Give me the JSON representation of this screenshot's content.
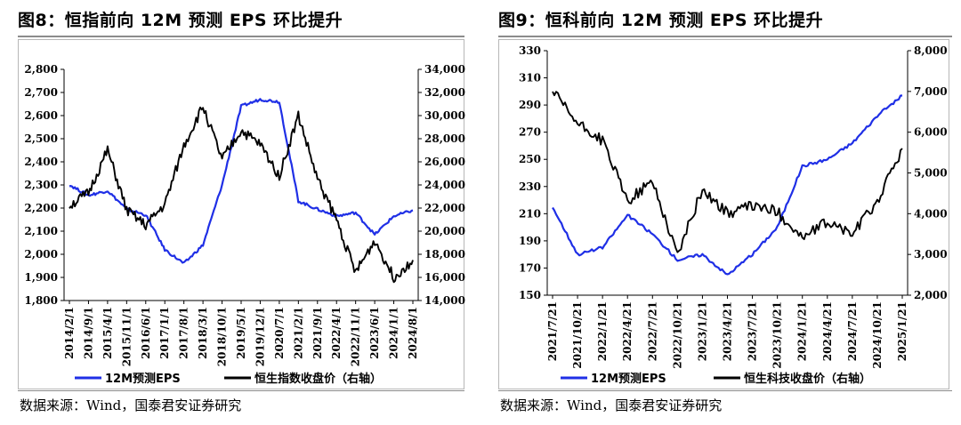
{
  "chart_data": [
    {
      "type": "line",
      "title": "图8：恒指前向 12M 预测 EPS 环比提升",
      "source": "数据来源：Wind，国泰君安证券研究",
      "categories": [
        "2014/2/1",
        "2014/9/1",
        "2015/4/1",
        "2015/11/1",
        "2016/6/1",
        "2017/1/1",
        "2017/8/1",
        "2018/3/1",
        "2018/10/1",
        "2019/5/1",
        "2019/12/1",
        "2020/7/1",
        "2021/2/1",
        "2021/9/1",
        "2022/4/1",
        "2022/11/1",
        "2023/6/1",
        "2024/1/1",
        "2024/8/1"
      ],
      "y_left": {
        "ylim": [
          1800,
          2800
        ],
        "ticks": [
          "1,800",
          "1,900",
          "2,000",
          "2,100",
          "2,200",
          "2,300",
          "2,400",
          "2,500",
          "2,600",
          "2,700",
          "2,800"
        ]
      },
      "y_right": {
        "ylim": [
          14000,
          34000
        ],
        "ticks": [
          "14,000",
          "16,000",
          "18,000",
          "20,000",
          "22,000",
          "24,000",
          "26,000",
          "28,000",
          "30,000",
          "32,000",
          "34,000"
        ]
      },
      "series": [
        {
          "name": "12M预测EPS",
          "axis": "left",
          "color": "#1f2fe6",
          "values": [
            2300,
            2255,
            2275,
            2195,
            2170,
            2020,
            1960,
            2040,
            2300,
            2640,
            2670,
            2660,
            2230,
            2195,
            2165,
            2180,
            2085,
            2165,
            2190
          ]
        },
        {
          "name": "恒生指数收盘价（右轴）",
          "axis": "right",
          "color": "#000000",
          "values": [
            22200,
            23300,
            27000,
            21800,
            20500,
            22300,
            27400,
            30800,
            26200,
            28700,
            27500,
            24800,
            30000,
            24500,
            21000,
            16400,
            19200,
            16000,
            17500
          ]
        }
      ]
    },
    {
      "type": "line",
      "title": "图9：恒科前向 12M 预测 EPS 环比提升",
      "source": "数据来源：Wind，国泰君安证券研究",
      "categories": [
        "2021/7/21",
        "2021/10/21",
        "2022/1/21",
        "2022/4/21",
        "2022/7/21",
        "2022/10/21",
        "2023/1/21",
        "2023/4/21",
        "2023/7/21",
        "2023/10/21",
        "2024/1/21",
        "2024/4/21",
        "2024/7/21",
        "2024/10/21",
        "2025/1/21"
      ],
      "y_left": {
        "ylim": [
          150,
          330
        ],
        "ticks": [
          "150",
          "170",
          "190",
          "210",
          "230",
          "250",
          "270",
          "290",
          "310",
          "330"
        ]
      },
      "y_right": {
        "ylim": [
          2000,
          8000
        ],
        "ticks": [
          "2,000",
          "3,000",
          "4,000",
          "5,000",
          "6,000",
          "7,000",
          "8,000"
        ]
      },
      "series": [
        {
          "name": "12M预测EPS",
          "axis": "left",
          "color": "#1f2fe6",
          "values": [
            215,
            180,
            185,
            209,
            195,
            176,
            180,
            165,
            180,
            200,
            245,
            250,
            262,
            282,
            297
          ]
        },
        {
          "name": "恒生科技收盘价（右轴）",
          "axis": "right",
          "color": "#000000",
          "values": [
            7000,
            6200,
            5800,
            4300,
            4800,
            3000,
            4600,
            4000,
            4200,
            4050,
            3400,
            3800,
            3500,
            4300,
            5600
          ]
        }
      ]
    }
  ]
}
